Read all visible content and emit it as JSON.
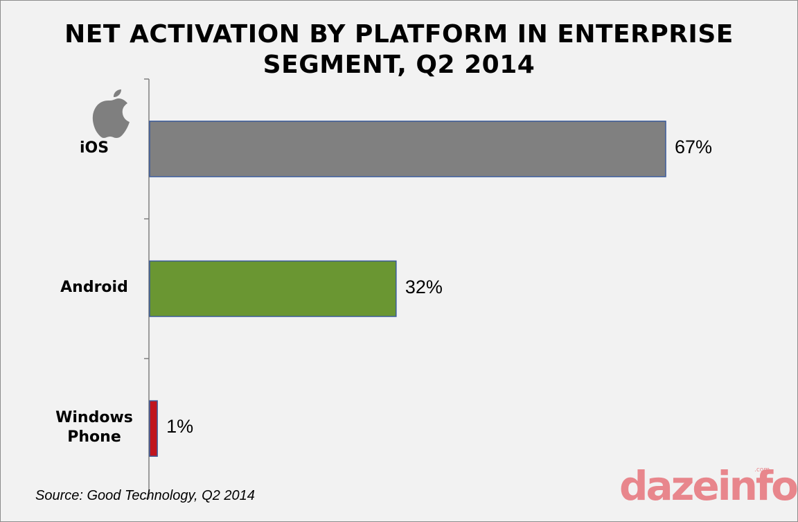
{
  "chart_data": {
    "type": "bar",
    "orientation": "horizontal",
    "title": "NET ACTIVATION BY PLATFORM IN ENTERPRISE SEGMENT, Q2 2014",
    "title_lines": [
      "NET ACTIVATION BY PLATFORM IN ENTERPRISE",
      "SEGMENT, Q2 2014"
    ],
    "categories": [
      "iOS",
      "Android",
      "Windows\nPhone"
    ],
    "values": [
      67,
      32,
      1
    ],
    "data_labels": [
      "67%",
      "32%",
      "1%"
    ],
    "bar_colors": [
      "#808080",
      "#6a9632",
      "#c0141e"
    ],
    "bar_border_color": "#3a5a9a",
    "xlim": [
      0,
      100
    ],
    "grid": false,
    "legend": "none",
    "source": "Source: Good Technology, Q2 2014",
    "watermark": "dazeinfo",
    "watermark_suffix": ".com",
    "category_icons": [
      "apple-logo-icon",
      null,
      null
    ]
  }
}
